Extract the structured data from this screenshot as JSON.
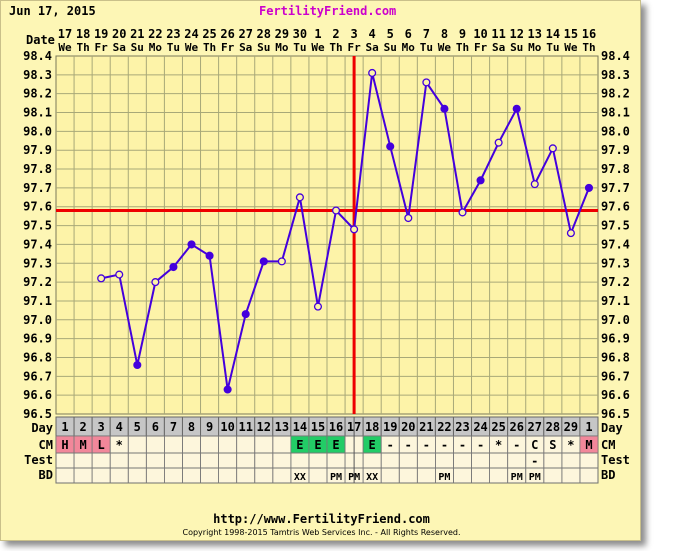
{
  "header": {
    "date": "Jun 17, 2015",
    "brand": "FertilityFriend.com"
  },
  "footer": {
    "url": "http://www.FertilityFriend.com",
    "copyright": "Copyright 1998-2015 Tamtris Web Services Inc. - All Rights Reserved."
  },
  "colors": {
    "background": "#fdf6b5",
    "grid": "#a8a878",
    "temp_line": "#4400dd",
    "coverline": "#ee0000",
    "ovulation_line": "#ee0000",
    "menses": "#f2879a",
    "eggwhite": "#22cc66"
  },
  "chart_data": {
    "type": "line",
    "row_labels": {
      "date": "Date",
      "day": "Day",
      "cm": "CM",
      "test": "Test",
      "bd": "BD"
    },
    "dates": [
      "17",
      "18",
      "19",
      "20",
      "21",
      "22",
      "23",
      "24",
      "25",
      "26",
      "27",
      "28",
      "29",
      "30",
      "1",
      "2",
      "3",
      "4",
      "5",
      "6",
      "7",
      "8",
      "9",
      "10",
      "11",
      "12",
      "13",
      "14",
      "15",
      "16"
    ],
    "weekdays": [
      "We",
      "Th",
      "Fr",
      "Sa",
      "Su",
      "Mo",
      "Tu",
      "We",
      "Th",
      "Fr",
      "Sa",
      "Su",
      "Mo",
      "Tu",
      "We",
      "Th",
      "Fr",
      "Sa",
      "Su",
      "Mo",
      "Tu",
      "We",
      "Th",
      "Fr",
      "Sa",
      "Su",
      "Mo",
      "Tu",
      "We",
      "Th"
    ],
    "cycle_days": [
      "1",
      "2",
      "3",
      "4",
      "5",
      "6",
      "7",
      "8",
      "9",
      "10",
      "11",
      "12",
      "13",
      "14",
      "15",
      "16",
      "17",
      "18",
      "19",
      "20",
      "21",
      "22",
      "23",
      "24",
      "25",
      "26",
      "27",
      "28",
      "29",
      "1"
    ],
    "y_ticks": [
      "98.4",
      "98.3",
      "98.2",
      "98.1",
      "98.0",
      "97.9",
      "97.8",
      "97.7",
      "97.6",
      "97.5",
      "97.4",
      "97.3",
      "97.2",
      "97.1",
      "97.0",
      "96.9",
      "96.8",
      "96.7",
      "96.6",
      "96.5"
    ],
    "ylim": [
      96.5,
      98.4
    ],
    "temperatures": [
      null,
      null,
      97.22,
      97.24,
      96.76,
      97.2,
      97.28,
      97.4,
      97.34,
      96.63,
      97.03,
      97.31,
      97.31,
      97.65,
      97.07,
      97.58,
      97.48,
      98.31,
      97.92,
      97.54,
      98.26,
      98.12,
      97.57,
      97.74,
      97.94,
      98.12,
      97.72,
      97.91,
      97.46,
      97.7
    ],
    "open_circle": [
      false,
      false,
      true,
      true,
      false,
      true,
      false,
      false,
      false,
      false,
      false,
      false,
      true,
      true,
      true,
      true,
      true,
      true,
      false,
      true,
      true,
      false,
      true,
      false,
      true,
      false,
      true,
      true,
      true,
      false
    ],
    "coverline": 97.58,
    "ovulation_after_day_index": 16,
    "cm": [
      "H",
      "M",
      "L",
      "*",
      "",
      "",
      "",
      "",
      "",
      "",
      "",
      "",
      "",
      "E",
      "E",
      "E",
      "",
      "E",
      "-",
      "-",
      "-",
      "-",
      "-",
      "-",
      "*",
      "-",
      "C",
      "S",
      "*",
      "M"
    ],
    "cm_types": [
      "menses",
      "menses",
      "menses",
      "",
      "",
      "",
      "",
      "",
      "",
      "",
      "",
      "",
      "",
      "eggwhite",
      "eggwhite",
      "eggwhite",
      "",
      "eggwhite",
      "",
      "",
      "",
      "",
      "",
      "",
      "",
      "",
      "",
      "",
      "",
      "menses"
    ],
    "test": [
      "",
      "",
      "",
      "",
      "",
      "",
      "",
      "",
      "",
      "",
      "",
      "",
      "",
      "",
      "",
      "",
      "",
      "",
      "",
      "",
      "",
      "",
      "",
      "",
      "",
      "",
      "-",
      "",
      "",
      ""
    ],
    "bd": [
      "",
      "",
      "",
      "",
      "",
      "",
      "",
      "",
      "",
      "",
      "",
      "",
      "",
      "XX",
      "",
      "PM",
      "PM",
      "XX",
      "",
      "",
      "",
      "PM",
      "",
      "",
      "",
      "PM",
      "PM",
      "",
      "",
      ""
    ]
  }
}
